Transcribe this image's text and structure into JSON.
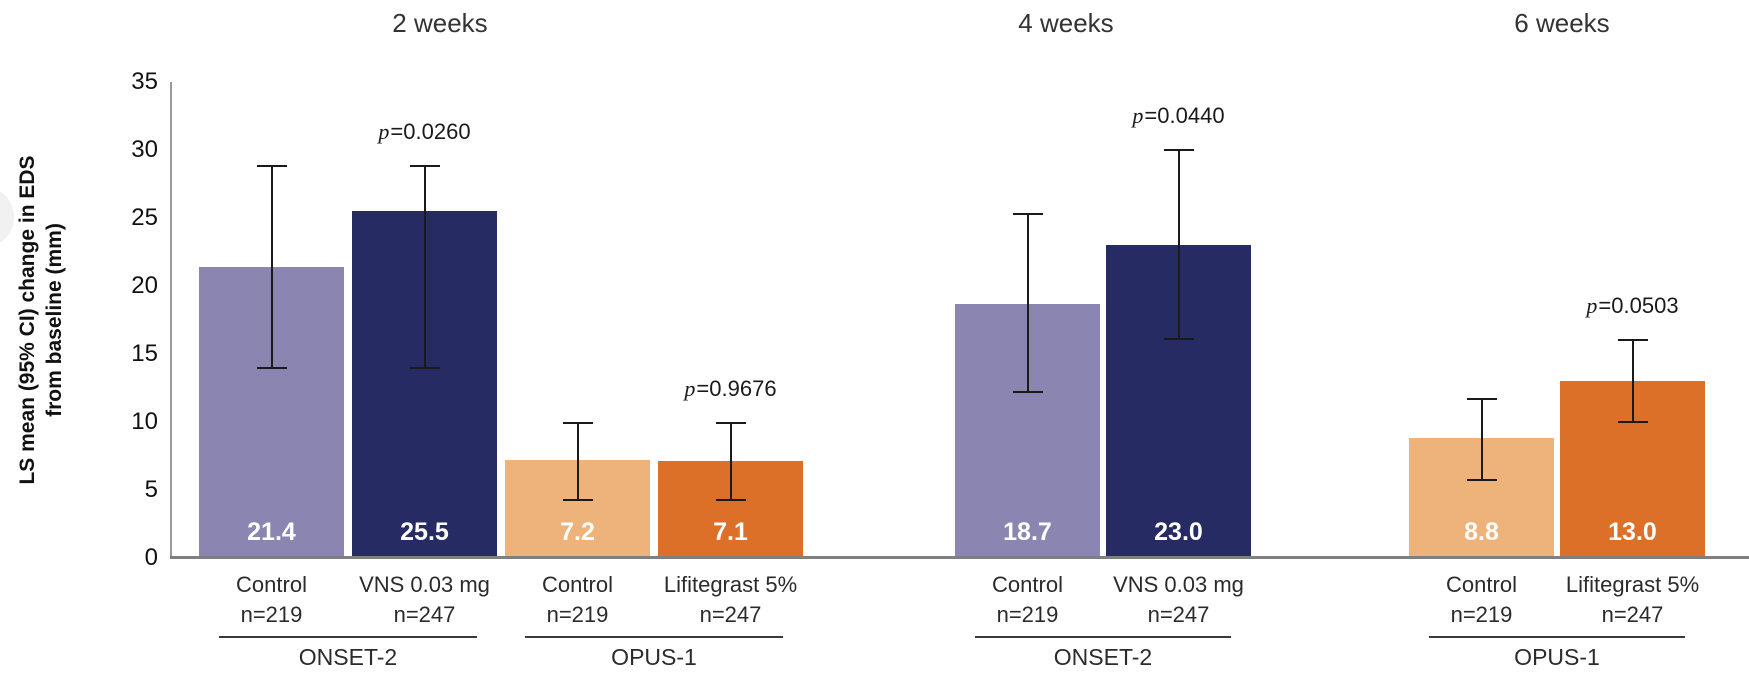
{
  "y_axis": {
    "title_line1": "LS mean (95% CI) change in EDS",
    "title_line2": "from baseline (mm)",
    "ticks": [
      0,
      5,
      10,
      15,
      20,
      25,
      30,
      35
    ]
  },
  "colors": {
    "onset_control": "#8B85B2",
    "onset_treatment": "#262C63",
    "opus_control": "#EDB37B",
    "opus_treatment": "#DD7028",
    "baseline": "#7f7f7f",
    "axis_line": "#9a9a9a",
    "error_bar": "#1a1a1a",
    "text": "#1a1a1a",
    "bar_value_text": "#ffffff"
  },
  "chart_data": {
    "type": "bar",
    "title": "",
    "xlabel": "",
    "ylabel": "LS mean (95% CI) change in EDS from baseline (mm)",
    "ylim": [
      0,
      35
    ],
    "grid": false,
    "legend": "none",
    "timepoints": [
      {
        "label": "2 weeks",
        "groups": [
          {
            "study": "ONSET-2",
            "bars": [
              {
                "label": "Control",
                "n": "n=219",
                "value": 21.4,
                "ci_low": 14.0,
                "ci_high": 28.8,
                "color_key": "onset_control"
              },
              {
                "label": "VNS 0.03 mg",
                "n": "n=247",
                "value": 25.5,
                "ci_low": 14.0,
                "ci_high": 28.8,
                "color_key": "onset_treatment",
                "p_value": "p=0.0260"
              }
            ]
          },
          {
            "study": "OPUS-1",
            "bars": [
              {
                "label": "Control",
                "n": "n=219",
                "value": 7.2,
                "ci_low": 4.3,
                "ci_high": 9.9,
                "color_key": "opus_control"
              },
              {
                "label": "Lifitegrast 5%",
                "n": "n=247",
                "value": 7.1,
                "ci_low": 4.3,
                "ci_high": 9.9,
                "color_key": "opus_treatment",
                "p_value": "p=0.9676"
              }
            ]
          }
        ]
      },
      {
        "label": "4 weeks",
        "groups": [
          {
            "study": "ONSET-2",
            "bars": [
              {
                "label": "Control",
                "n": "n=219",
                "value": 18.7,
                "ci_low": 12.2,
                "ci_high": 25.3,
                "color_key": "onset_control"
              },
              {
                "label": "VNS 0.03 mg",
                "n": "n=247",
                "value": 23.0,
                "ci_low": 16.1,
                "ci_high": 30.0,
                "color_key": "onset_treatment",
                "p_value": "p=0.0440"
              }
            ]
          }
        ]
      },
      {
        "label": "6 weeks",
        "groups": [
          {
            "study": "OPUS-1",
            "bars": [
              {
                "label": "Control",
                "n": "n=219",
                "value": 8.8,
                "ci_low": 5.7,
                "ci_high": 11.7,
                "color_key": "opus_control"
              },
              {
                "label": "Lifitegrast 5%",
                "n": "n=247",
                "value": 13.0,
                "ci_low": 10.0,
                "ci_high": 16.0,
                "color_key": "opus_treatment",
                "p_value": "p=0.0503"
              }
            ]
          }
        ]
      }
    ]
  }
}
